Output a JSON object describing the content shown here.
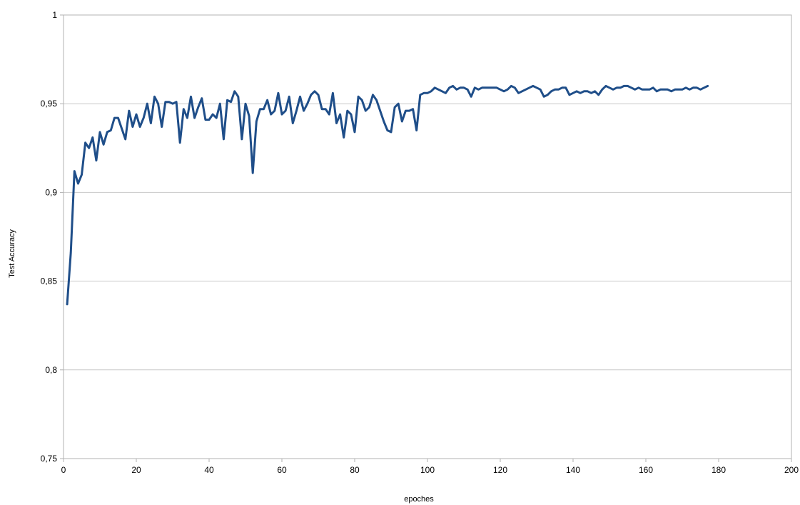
{
  "chart_data": {
    "type": "line",
    "title": "",
    "xlabel": "epoches",
    "ylabel": "Test Accuracy",
    "xlim": [
      0,
      200
    ],
    "ylim": [
      0.75,
      1
    ],
    "x_ticks": [
      0,
      20,
      40,
      60,
      80,
      100,
      120,
      140,
      160,
      180,
      200
    ],
    "x_tick_labels": [
      "0",
      "20",
      "40",
      "60",
      "80",
      "100",
      "120",
      "140",
      "160",
      "180",
      "200"
    ],
    "y_ticks": [
      0.75,
      0.8,
      0.85,
      0.9,
      0.95,
      1
    ],
    "y_tick_labels": [
      "0,75",
      "0,8",
      "0,85",
      "0,9",
      "0,95",
      "1"
    ],
    "grid": "horizontal",
    "legend": "none",
    "series": [
      {
        "color": "#1f4e89",
        "x": [
          1,
          2,
          3,
          4,
          5,
          6,
          7,
          8,
          9,
          10,
          11,
          12,
          13,
          14,
          15,
          16,
          17,
          18,
          19,
          20,
          21,
          22,
          23,
          24,
          25,
          26,
          27,
          28,
          29,
          30,
          31,
          32,
          33,
          34,
          35,
          36,
          37,
          38,
          39,
          40,
          41,
          42,
          43,
          44,
          45,
          46,
          47,
          48,
          49,
          50,
          51,
          52,
          53,
          54,
          55,
          56,
          57,
          58,
          59,
          60,
          61,
          62,
          63,
          64,
          65,
          66,
          67,
          68,
          69,
          70,
          71,
          72,
          73,
          74,
          75,
          76,
          77,
          78,
          79,
          80,
          81,
          82,
          83,
          84,
          85,
          86,
          87,
          88,
          89,
          90,
          91,
          92,
          93,
          94,
          95,
          96,
          97,
          98,
          99,
          100,
          101,
          102,
          103,
          104,
          105,
          106,
          107,
          108,
          109,
          110,
          111,
          112,
          113,
          114,
          115,
          116,
          117,
          118,
          119,
          120,
          121,
          122,
          123,
          124,
          125,
          126,
          127,
          128,
          129,
          130,
          131,
          132,
          133,
          134,
          135,
          136,
          137,
          138,
          139,
          140,
          141,
          142,
          143,
          144,
          145,
          146,
          147,
          148,
          149,
          150,
          151,
          152,
          153,
          154,
          155,
          156,
          157,
          158,
          159,
          160,
          161,
          162,
          163,
          164,
          165,
          166,
          167,
          168,
          169,
          170,
          171,
          172,
          173,
          174,
          175,
          176,
          177
        ],
        "values": [
          0.837,
          0.866,
          0.912,
          0.905,
          0.91,
          0.928,
          0.925,
          0.931,
          0.918,
          0.934,
          0.927,
          0.934,
          0.935,
          0.942,
          0.942,
          0.936,
          0.93,
          0.946,
          0.937,
          0.944,
          0.937,
          0.942,
          0.95,
          0.939,
          0.954,
          0.95,
          0.937,
          0.951,
          0.951,
          0.95,
          0.951,
          0.928,
          0.947,
          0.942,
          0.954,
          0.942,
          0.948,
          0.953,
          0.941,
          0.941,
          0.944,
          0.942,
          0.95,
          0.93,
          0.952,
          0.951,
          0.957,
          0.954,
          0.93,
          0.95,
          0.943,
          0.911,
          0.94,
          0.947,
          0.947,
          0.952,
          0.944,
          0.946,
          0.956,
          0.944,
          0.946,
          0.954,
          0.939,
          0.946,
          0.954,
          0.946,
          0.95,
          0.955,
          0.957,
          0.955,
          0.947,
          0.947,
          0.944,
          0.956,
          0.939,
          0.944,
          0.931,
          0.946,
          0.944,
          0.934,
          0.954,
          0.952,
          0.946,
          0.948,
          0.955,
          0.952,
          0.946,
          0.94,
          0.935,
          0.934,
          0.948,
          0.95,
          0.94,
          0.946,
          0.946,
          0.947,
          0.935,
          0.955,
          0.956,
          0.956,
          0.957,
          0.959,
          0.958,
          0.957,
          0.956,
          0.959,
          0.96,
          0.958,
          0.959,
          0.959,
          0.958,
          0.954,
          0.959,
          0.958,
          0.959,
          0.959,
          0.959,
          0.959,
          0.959,
          0.958,
          0.957,
          0.958,
          0.96,
          0.959,
          0.956,
          0.957,
          0.958,
          0.959,
          0.96,
          0.959,
          0.958,
          0.954,
          0.955,
          0.957,
          0.958,
          0.958,
          0.959,
          0.959,
          0.955,
          0.956,
          0.957,
          0.956,
          0.957,
          0.957,
          0.956,
          0.957,
          0.955,
          0.958,
          0.96,
          0.959,
          0.958,
          0.959,
          0.959,
          0.96,
          0.96,
          0.959,
          0.958,
          0.959,
          0.958,
          0.958,
          0.958,
          0.959,
          0.957,
          0.958,
          0.958,
          0.958,
          0.957,
          0.958,
          0.958,
          0.958,
          0.959,
          0.958,
          0.959,
          0.959,
          0.958,
          0.959,
          0.96
        ]
      }
    ]
  }
}
